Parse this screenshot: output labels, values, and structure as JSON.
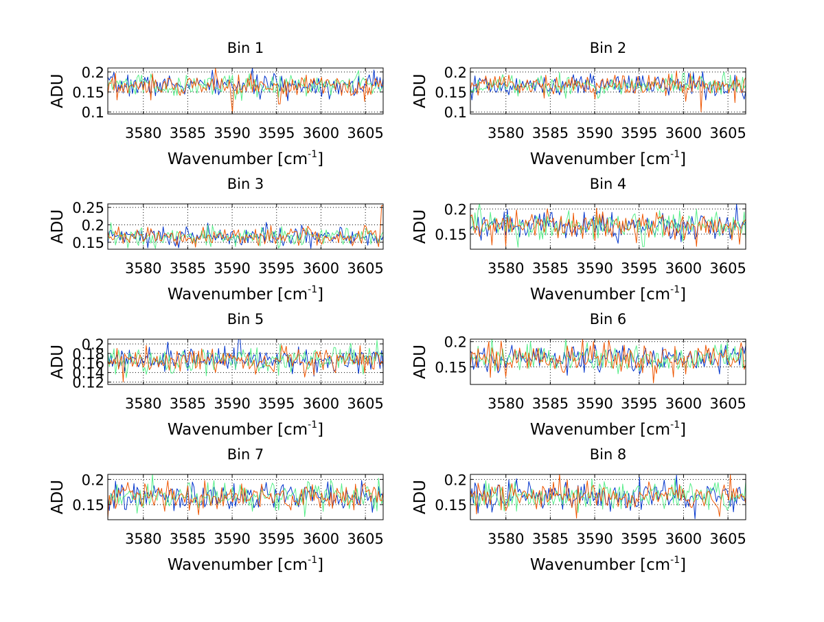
{
  "chart_data": {
    "type": "line",
    "xlim": [
      3576,
      3607
    ],
    "xticks": [
      3580,
      3585,
      3590,
      3595,
      3600,
      3605
    ],
    "xlabel_main": "Wavenumber [cm",
    "xlabel_sup": "-1",
    "xlabel_close": "]",
    "ylabel": "ADU",
    "grid": true,
    "series_colors": [
      "#0033cc",
      "#55ee88",
      "#ee5500"
    ],
    "series_names": [
      "blue",
      "green",
      "orange"
    ],
    "baseline": 0.167,
    "noise": 0.014,
    "samples_per_series": 180,
    "panels": [
      {
        "title": "Bin 1",
        "ylim": [
          0.095,
          0.21
        ],
        "yticks": [
          0.1,
          0.15,
          0.2
        ],
        "yticklabels": [
          "0.1",
          "0.15",
          "0.2"
        ],
        "spikes": [
          {
            "series": 2,
            "x": 3590.0,
            "y": 0.097
          },
          {
            "series": 2,
            "x": 3595.3,
            "y": 0.12
          },
          {
            "series": 0,
            "x": 3606.0,
            "y": 0.205
          }
        ]
      },
      {
        "title": "Bin 2",
        "ylim": [
          0.095,
          0.21
        ],
        "yticks": [
          0.1,
          0.15,
          0.2
        ],
        "yticklabels": [
          "0.1",
          "0.15",
          "0.2"
        ],
        "spikes": [
          {
            "series": 2,
            "x": 3602.0,
            "y": 0.1
          },
          {
            "series": 2,
            "x": 3590.0,
            "y": 0.132
          }
        ]
      },
      {
        "title": "Bin 3",
        "ylim": [
          0.13,
          0.26
        ],
        "yticks": [
          0.15,
          0.2,
          0.25
        ],
        "yticklabels": [
          "0.15",
          "0.2",
          "0.25"
        ],
        "spikes": [
          {
            "series": 2,
            "x": 3606.9,
            "y": 0.255
          },
          {
            "series": 0,
            "x": 3587.3,
            "y": 0.205
          }
        ]
      },
      {
        "title": "Bin 4",
        "ylim": [
          0.12,
          0.21
        ],
        "yticks": [
          0.15,
          0.2
        ],
        "yticklabels": [
          "0.15",
          "0.2"
        ],
        "spikes": [
          {
            "series": 0,
            "x": 3606.0,
            "y": 0.21
          },
          {
            "series": 1,
            "x": 3595.5,
            "y": 0.125
          }
        ]
      },
      {
        "title": "Bin 5",
        "ylim": [
          0.115,
          0.21
        ],
        "yticks": [
          0.12,
          0.14,
          0.16,
          0.18,
          0.2
        ],
        "yticklabels": [
          "0.12",
          "0.14",
          "0.16",
          "0.18",
          "0.2"
        ],
        "spikes": [
          {
            "series": 0,
            "x": 3590.8,
            "y": 0.21
          },
          {
            "series": 2,
            "x": 3577.8,
            "y": 0.12
          }
        ]
      },
      {
        "title": "Bin 6",
        "ylim": [
          0.115,
          0.205
        ],
        "yticks": [
          0.15,
          0.2
        ],
        "yticklabels": [
          "0.15",
          "0.2"
        ],
        "spikes": [
          {
            "series": 2,
            "x": 3596.6,
            "y": 0.118
          }
        ]
      },
      {
        "title": "Bin 7",
        "ylim": [
          0.12,
          0.21
        ],
        "yticks": [
          0.15,
          0.2
        ],
        "yticklabels": [
          "0.15",
          "0.2"
        ],
        "spikes": [
          {
            "series": 2,
            "x": 3576.0,
            "y": 0.122
          },
          {
            "series": 1,
            "x": 3581.0,
            "y": 0.21
          }
        ]
      },
      {
        "title": "Bin 8",
        "ylim": [
          0.12,
          0.21
        ],
        "yticks": [
          0.15,
          0.2
        ],
        "yticklabels": [
          "0.15",
          "0.2"
        ],
        "spikes": [
          {
            "series": 2,
            "x": 3588.0,
            "y": 0.123
          },
          {
            "series": 2,
            "x": 3586.0,
            "y": 0.212
          }
        ]
      }
    ]
  }
}
